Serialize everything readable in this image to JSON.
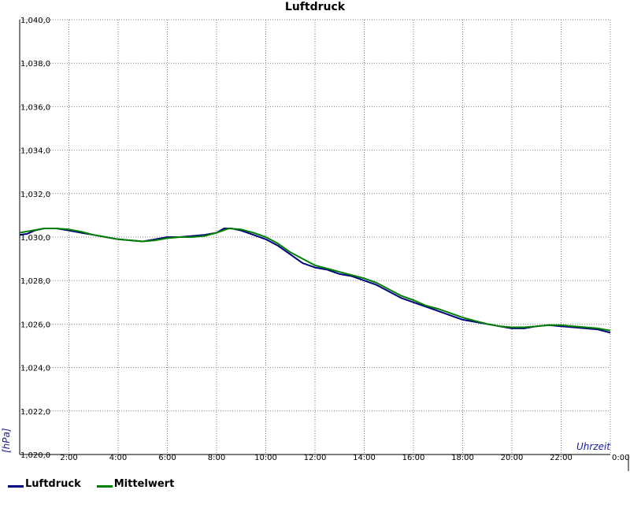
{
  "chart_data": {
    "type": "line",
    "title": "Luftdruck",
    "xlabel": "Uhrzeit",
    "ylabel": "[hPa]",
    "xlim": [
      0,
      24
    ],
    "ylim": [
      1020.0,
      1040.0
    ],
    "grid": true,
    "legend_position": "bottom-left",
    "x_tick_labels": [
      "2:00",
      "4:00",
      "6:00",
      "8:00",
      "10:00",
      "12:00",
      "14:00",
      "16:00",
      "18:00",
      "20:00",
      "22:00",
      "0:00"
    ],
    "y_tick_labels": [
      "1,020,0",
      "1,022,0",
      "1,024,0",
      "1,026,0",
      "1,028,0",
      "1,030,0",
      "1,032,0",
      "1,034,0",
      "1,036,0",
      "1,038,0",
      "1,040,0"
    ],
    "series": [
      {
        "name": "Luftdruck",
        "color": "#000080",
        "points": [
          [
            0,
            1030.1
          ],
          [
            0.3,
            1030.15
          ],
          [
            0.6,
            1030.3
          ],
          [
            1.0,
            1030.4
          ],
          [
            1.5,
            1030.4
          ],
          [
            2.0,
            1030.3
          ],
          [
            2.5,
            1030.2
          ],
          [
            3.0,
            1030.1
          ],
          [
            3.5,
            1030.0
          ],
          [
            4.0,
            1029.9
          ],
          [
            4.5,
            1029.85
          ],
          [
            5.0,
            1029.8
          ],
          [
            5.5,
            1029.9
          ],
          [
            6.0,
            1030.0
          ],
          [
            6.5,
            1030.0
          ],
          [
            7.0,
            1030.05
          ],
          [
            7.5,
            1030.1
          ],
          [
            8.0,
            1030.2
          ],
          [
            8.3,
            1030.4
          ],
          [
            8.6,
            1030.4
          ],
          [
            9.0,
            1030.3
          ],
          [
            9.5,
            1030.1
          ],
          [
            10.0,
            1029.9
          ],
          [
            10.5,
            1029.6
          ],
          [
            11.0,
            1029.2
          ],
          [
            11.5,
            1028.8
          ],
          [
            12.0,
            1028.6
          ],
          [
            12.5,
            1028.5
          ],
          [
            13.0,
            1028.3
          ],
          [
            13.5,
            1028.2
          ],
          [
            14.0,
            1028.0
          ],
          [
            14.5,
            1027.8
          ],
          [
            15.0,
            1027.5
          ],
          [
            15.5,
            1027.2
          ],
          [
            16.0,
            1027.0
          ],
          [
            16.5,
            1026.8
          ],
          [
            17.0,
            1026.6
          ],
          [
            17.5,
            1026.4
          ],
          [
            18.0,
            1026.2
          ],
          [
            18.5,
            1026.1
          ],
          [
            19.0,
            1026.0
          ],
          [
            19.5,
            1025.9
          ],
          [
            20.0,
            1025.8
          ],
          [
            20.5,
            1025.8
          ],
          [
            21.0,
            1025.9
          ],
          [
            21.5,
            1025.95
          ],
          [
            22.0,
            1025.9
          ],
          [
            22.5,
            1025.85
          ],
          [
            23.0,
            1025.8
          ],
          [
            23.5,
            1025.75
          ],
          [
            24.0,
            1025.6
          ]
        ]
      },
      {
        "name": "Mittelwert",
        "color": "#008000",
        "points": [
          [
            0,
            1030.2
          ],
          [
            0.5,
            1030.3
          ],
          [
            1.0,
            1030.4
          ],
          [
            1.5,
            1030.4
          ],
          [
            2.0,
            1030.35
          ],
          [
            2.5,
            1030.25
          ],
          [
            3.0,
            1030.1
          ],
          [
            3.5,
            1030.0
          ],
          [
            4.0,
            1029.9
          ],
          [
            4.5,
            1029.85
          ],
          [
            5.0,
            1029.8
          ],
          [
            5.5,
            1029.85
          ],
          [
            6.0,
            1029.95
          ],
          [
            6.5,
            1030.0
          ],
          [
            7.0,
            1030.0
          ],
          [
            7.5,
            1030.05
          ],
          [
            8.0,
            1030.2
          ],
          [
            8.5,
            1030.4
          ],
          [
            9.0,
            1030.35
          ],
          [
            9.5,
            1030.2
          ],
          [
            10.0,
            1030.0
          ],
          [
            10.5,
            1029.7
          ],
          [
            11.0,
            1029.3
          ],
          [
            11.5,
            1029.0
          ],
          [
            12.0,
            1028.7
          ],
          [
            12.5,
            1028.55
          ],
          [
            13.0,
            1028.4
          ],
          [
            13.5,
            1028.25
          ],
          [
            14.0,
            1028.1
          ],
          [
            14.5,
            1027.9
          ],
          [
            15.0,
            1027.6
          ],
          [
            15.5,
            1027.3
          ],
          [
            16.0,
            1027.1
          ],
          [
            16.5,
            1026.85
          ],
          [
            17.0,
            1026.7
          ],
          [
            17.5,
            1026.5
          ],
          [
            18.0,
            1026.3
          ],
          [
            18.5,
            1026.15
          ],
          [
            19.0,
            1026.0
          ],
          [
            19.5,
            1025.9
          ],
          [
            20.0,
            1025.85
          ],
          [
            20.5,
            1025.85
          ],
          [
            21.0,
            1025.9
          ],
          [
            21.5,
            1025.95
          ],
          [
            22.0,
            1025.95
          ],
          [
            22.5,
            1025.9
          ],
          [
            23.0,
            1025.85
          ],
          [
            23.5,
            1025.8
          ],
          [
            24.0,
            1025.7
          ]
        ]
      }
    ]
  }
}
